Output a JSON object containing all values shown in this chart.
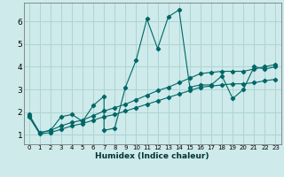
{
  "xlabel": "Humidex (Indice chaleur)",
  "background_color": "#ceeaea",
  "grid_color": "#aed4d4",
  "line_color": "#006666",
  "xlim": [
    -0.5,
    23.5
  ],
  "ylim": [
    0.6,
    6.8
  ],
  "xticks": [
    0,
    1,
    2,
    3,
    4,
    5,
    6,
    7,
    8,
    9,
    10,
    11,
    12,
    13,
    14,
    15,
    16,
    17,
    18,
    19,
    20,
    21,
    22,
    23
  ],
  "yticks": [
    1,
    2,
    3,
    4,
    5,
    6
  ],
  "main_line_x": [
    0,
    1,
    2,
    3,
    4,
    5,
    6,
    7,
    7,
    8,
    9,
    10,
    11,
    12,
    13,
    14,
    15,
    16,
    17,
    18,
    19,
    20,
    21,
    22,
    23
  ],
  "main_line_y": [
    1.9,
    1.1,
    1.2,
    1.8,
    1.9,
    1.6,
    2.3,
    2.7,
    1.2,
    1.3,
    3.1,
    4.3,
    6.1,
    4.8,
    6.2,
    6.5,
    3.1,
    3.2,
    3.2,
    3.6,
    2.6,
    3.0,
    4.0,
    3.9,
    4.0
  ],
  "line2_x": [
    0,
    1,
    2,
    3,
    4,
    5,
    6,
    7,
    8,
    9,
    10,
    11,
    12,
    13,
    14,
    15,
    16,
    17,
    18,
    19,
    20,
    21,
    22,
    23
  ],
  "line2_y": [
    1.85,
    1.1,
    1.2,
    1.4,
    1.55,
    1.65,
    1.85,
    2.05,
    2.2,
    2.35,
    2.55,
    2.75,
    2.95,
    3.1,
    3.3,
    3.5,
    3.7,
    3.75,
    3.8,
    3.8,
    3.8,
    3.9,
    4.0,
    4.1
  ],
  "line3_x": [
    0,
    1,
    2,
    3,
    4,
    5,
    6,
    7,
    8,
    9,
    10,
    11,
    12,
    13,
    14,
    15,
    16,
    17,
    18,
    19,
    20,
    21,
    22,
    23
  ],
  "line3_y": [
    1.8,
    1.05,
    1.1,
    1.25,
    1.4,
    1.5,
    1.65,
    1.8,
    1.9,
    2.05,
    2.2,
    2.35,
    2.5,
    2.65,
    2.8,
    2.95,
    3.1,
    3.15,
    3.2,
    3.25,
    3.25,
    3.3,
    3.38,
    3.45
  ],
  "marker": "D",
  "markersize": 2.2,
  "linewidth": 0.8
}
